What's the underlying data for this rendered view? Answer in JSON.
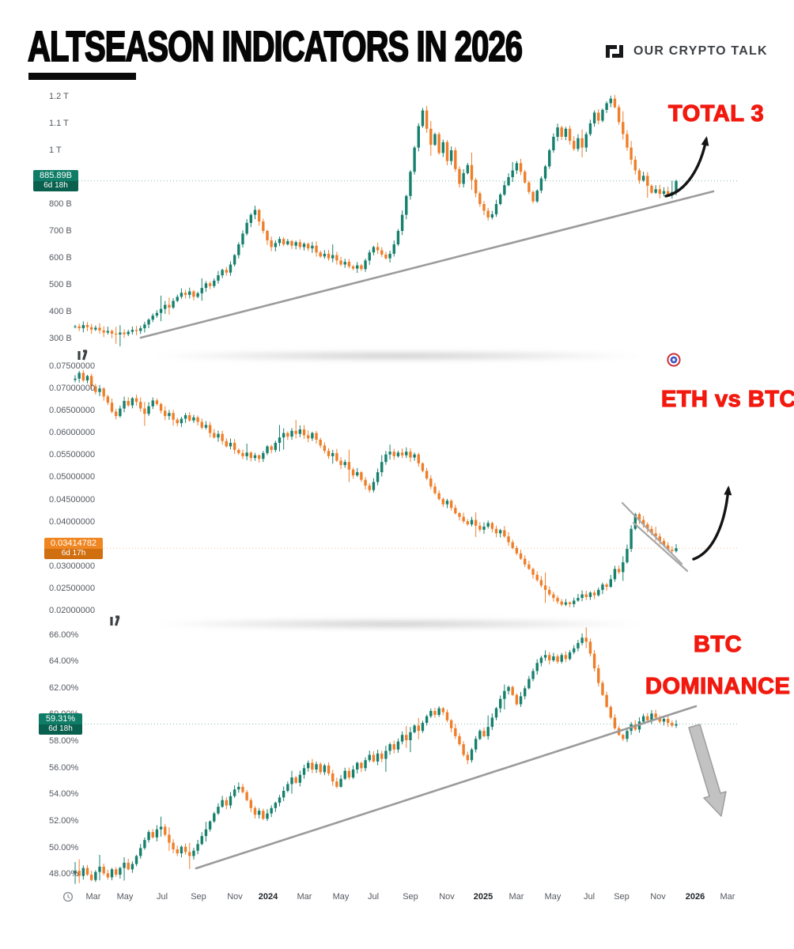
{
  "title": "ALTSEASON INDICATORS IN 2026",
  "brand": {
    "name": "OUR CRYPTO TALK"
  },
  "annotations": {
    "total3": "TOTAL 3",
    "ethbtc": "ETH vs BTC",
    "btc_dom_line1": "BTC",
    "btc_dom_line2": "DOMINANCE"
  },
  "colors": {
    "up": "#17806d",
    "down": "#ef7e2a",
    "accent_red": "#f2190f",
    "trendline": "#9b9b9b",
    "arrow_black": "#141414",
    "big_arrow": "#c2c2c2"
  },
  "x_axis": {
    "labels": [
      "Mar",
      "May",
      "Jul",
      "Sep",
      "Nov",
      "2024",
      "Mar",
      "May",
      "Jul",
      "Sep",
      "Nov",
      "2025",
      "Mar",
      "May",
      "Jul",
      "Sep",
      "Nov",
      "2026",
      "Mar"
    ],
    "bold_labels": [
      "2024",
      "2025",
      "2026"
    ]
  },
  "chart_data": [
    {
      "type": "candlestick",
      "name": "TOTAL 3",
      "unit": "USD billions",
      "x_range": [
        "Mar 2023",
        "Mar 2026"
      ],
      "ylim": [
        288,
        1233
      ],
      "legend_position": "none",
      "grid": false,
      "drawings": [
        "rising-support-trendline",
        "curved-up-arrow"
      ],
      "y_ticks": [
        {
          "label": "1.2 T",
          "value": 1200
        },
        {
          "label": "1.1 T",
          "value": 1100
        },
        {
          "label": "1 T",
          "value": 1000
        },
        {
          "label": "800 B",
          "value": 800
        },
        {
          "label": "700 B",
          "value": 700
        },
        {
          "label": "600 B",
          "value": 600
        },
        {
          "label": "500 B",
          "value": 500
        },
        {
          "label": "400 B",
          "value": 400
        },
        {
          "label": "300 B",
          "value": 300
        }
      ],
      "last_price": {
        "value": "885.89B",
        "countdown": "6d 18h"
      },
      "badge": {
        "bg": "#0e7c66",
        "bg_dark": "#0a604e"
      },
      "closes": [
        345,
        338,
        350,
        342,
        333,
        340,
        330,
        322,
        328,
        318,
        315,
        322,
        316,
        325,
        332,
        328,
        338,
        352,
        370,
        385,
        395,
        410,
        425,
        415,
        440,
        455,
        470,
        462,
        475,
        455,
        468,
        488,
        505,
        495,
        515,
        535,
        555,
        545,
        575,
        610,
        650,
        690,
        730,
        760,
        778,
        735,
        700,
        665,
        640,
        655,
        670,
        650,
        662,
        645,
        658,
        640,
        652,
        635,
        645,
        620,
        605,
        615,
        598,
        610,
        590,
        575,
        585,
        568,
        560,
        572,
        558,
        590,
        620,
        640,
        628,
        612,
        598,
        615,
        650,
        700,
        760,
        830,
        920,
        1010,
        1090,
        1148,
        1080,
        1020,
        1060,
        990,
        1030,
        960,
        1000,
        930,
        875,
        915,
        945,
        890,
        840,
        800,
        775,
        750,
        762,
        800,
        835,
        870,
        900,
        925,
        952,
        920,
        880,
        845,
        810,
        850,
        895,
        940,
        1000,
        1050,
        1085,
        1050,
        1080,
        1035,
        1005,
        1045,
        1010,
        1060,
        1100,
        1140,
        1110,
        1150,
        1175,
        1192,
        1160,
        1105,
        1060,
        1010,
        965,
        925,
        888,
        905,
        868,
        842,
        855,
        838,
        848,
        832,
        845,
        885.89
      ]
    },
    {
      "type": "candlestick",
      "name": "ETH vs BTC",
      "unit": "ETH/BTC ratio",
      "x_range": [
        "Mar 2023",
        "Mar 2026"
      ],
      "ylim": [
        0.02,
        0.075
      ],
      "legend_position": "none",
      "grid": false,
      "drawings": [
        "descending-bull-flag-channel",
        "curved-up-arrow"
      ],
      "y_ticks": [
        {
          "label": "0.07500000",
          "value": 0.075
        },
        {
          "label": "0.07000000",
          "value": 0.07
        },
        {
          "label": "0.06500000",
          "value": 0.065
        },
        {
          "label": "0.06000000",
          "value": 0.06
        },
        {
          "label": "0.05500000",
          "value": 0.055
        },
        {
          "label": "0.05000000",
          "value": 0.05
        },
        {
          "label": "0.04500000",
          "value": 0.045
        },
        {
          "label": "0.04000000",
          "value": 0.04
        },
        {
          "label": "0.03000000",
          "value": 0.03
        },
        {
          "label": "0.02500000",
          "value": 0.025
        },
        {
          "label": "0.02000000",
          "value": 0.02
        }
      ],
      "last_price": {
        "value": "0.03414782",
        "countdown": "6d 17h"
      },
      "badge": {
        "bg": "#ef8621",
        "bg_dark": "#cf6f10"
      },
      "closes": [
        0.0722,
        0.0735,
        0.0718,
        0.0728,
        0.0705,
        0.0692,
        0.07,
        0.0682,
        0.0668,
        0.0648,
        0.0638,
        0.0655,
        0.0672,
        0.0662,
        0.0678,
        0.067,
        0.0655,
        0.0643,
        0.066,
        0.0673,
        0.0665,
        0.065,
        0.0638,
        0.0645,
        0.063,
        0.0622,
        0.0632,
        0.064,
        0.0628,
        0.0635,
        0.0625,
        0.0612,
        0.0618,
        0.06,
        0.059,
        0.0598,
        0.0582,
        0.057,
        0.0578,
        0.0562,
        0.0555,
        0.0548,
        0.0556,
        0.0544,
        0.055,
        0.0542,
        0.0555,
        0.057,
        0.0562,
        0.0578,
        0.059,
        0.06,
        0.0592,
        0.0605,
        0.0598,
        0.0608,
        0.0595,
        0.0588,
        0.06,
        0.0585,
        0.0572,
        0.056,
        0.0548,
        0.0555,
        0.0538,
        0.0528,
        0.0535,
        0.0518,
        0.0505,
        0.0512,
        0.0495,
        0.0482,
        0.0472,
        0.049,
        0.0512,
        0.0535,
        0.0552,
        0.0558,
        0.0548,
        0.0556,
        0.055,
        0.0558,
        0.0545,
        0.0552,
        0.0532,
        0.0515,
        0.0498,
        0.048,
        0.0465,
        0.0452,
        0.044,
        0.0448,
        0.0432,
        0.042,
        0.0412,
        0.0402,
        0.0395,
        0.0405,
        0.0392,
        0.0383,
        0.039,
        0.0398,
        0.0385,
        0.0375,
        0.0382,
        0.0368,
        0.0355,
        0.0342,
        0.033,
        0.0318,
        0.0305,
        0.0295,
        0.0282,
        0.027,
        0.0258,
        0.0248,
        0.0238,
        0.023,
        0.0222,
        0.0215,
        0.022,
        0.0216,
        0.0224,
        0.023,
        0.0238,
        0.0232,
        0.0242,
        0.0236,
        0.0248,
        0.026,
        0.0255,
        0.0272,
        0.0295,
        0.0288,
        0.031,
        0.034,
        0.0385,
        0.0418,
        0.0405,
        0.0395,
        0.0385,
        0.0375,
        0.0368,
        0.0358,
        0.0348,
        0.0338,
        0.0335,
        0.03414782
      ]
    },
    {
      "type": "candlestick",
      "name": "BTC DOMINANCE",
      "unit": "percent",
      "x_range": [
        "Mar 2023",
        "Mar 2026"
      ],
      "ylim": [
        47,
        66.5
      ],
      "legend_position": "none",
      "grid": false,
      "drawings": [
        "rising-support-trendline",
        "thick-gray-down-arrow"
      ],
      "y_ticks": [
        {
          "label": "66.00%",
          "value": 66
        },
        {
          "label": "64.00%",
          "value": 64
        },
        {
          "label": "62.00%",
          "value": 62
        },
        {
          "label": "60.00%",
          "value": 60
        },
        {
          "label": "58.00%",
          "value": 58
        },
        {
          "label": "56.00%",
          "value": 56
        },
        {
          "label": "54.00%",
          "value": 54
        },
        {
          "label": "52.00%",
          "value": 52
        },
        {
          "label": "50.00%",
          "value": 50
        },
        {
          "label": "48.00%",
          "value": 48
        }
      ],
      "last_price": {
        "value": "59.31%",
        "countdown": "6d 18h"
      },
      "badge": {
        "bg": "#0e7c66",
        "bg_dark": "#0a604e"
      },
      "closes": [
        48.3,
        47.9,
        48.5,
        48.0,
        47.6,
        48.2,
        48.6,
        48.1,
        47.8,
        48.4,
        48.0,
        48.5,
        48.9,
        48.4,
        48.8,
        49.4,
        50.0,
        50.6,
        51.2,
        50.8,
        51.4,
        51.6,
        51.0,
        50.4,
        49.9,
        49.6,
        50.1,
        49.7,
        49.4,
        49.8,
        50.3,
        50.9,
        51.4,
        52.0,
        52.6,
        53.1,
        53.6,
        53.2,
        53.9,
        54.4,
        54.6,
        54.2,
        53.6,
        53.0,
        52.5,
        52.8,
        52.2,
        52.6,
        53.0,
        53.4,
        53.8,
        54.3,
        54.8,
        55.3,
        54.9,
        55.5,
        56.0,
        56.4,
        55.9,
        56.3,
        55.7,
        56.2,
        55.6,
        55.0,
        54.6,
        55.2,
        55.8,
        55.3,
        55.9,
        56.4,
        56.0,
        56.6,
        57.0,
        56.5,
        57.1,
        56.7,
        57.3,
        57.8,
        57.4,
        58.0,
        58.5,
        58.1,
        58.7,
        59.2,
        58.8,
        59.4,
        59.9,
        60.3,
        60.0,
        60.5,
        60.2,
        59.6,
        59.0,
        58.4,
        57.8,
        57.0,
        56.6,
        57.4,
        58.2,
        58.8,
        58.4,
        59.1,
        59.8,
        60.5,
        61.2,
        61.8,
        62.1,
        61.5,
        60.8,
        61.4,
        62.0,
        62.7,
        63.3,
        63.9,
        64.3,
        64.5,
        64.1,
        64.4,
        64.0,
        64.5,
        64.2,
        64.7,
        65.0,
        65.4,
        65.8,
        65.5,
        64.6,
        63.5,
        62.4,
        61.5,
        60.6,
        59.8,
        59.0,
        58.5,
        58.2,
        58.8,
        59.3,
        58.9,
        59.5,
        59.9,
        59.6,
        60.1,
        59.8,
        59.5,
        59.7,
        59.4,
        59.2,
        59.31
      ]
    }
  ]
}
